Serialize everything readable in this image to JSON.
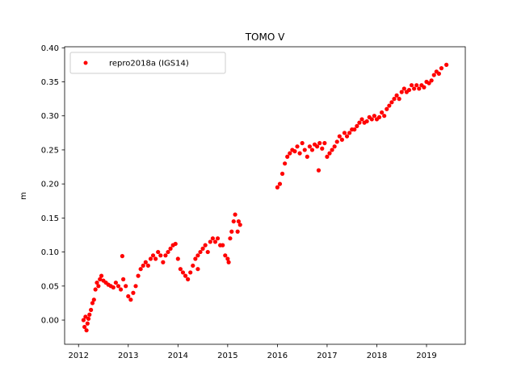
{
  "chart_data": {
    "type": "scatter",
    "title": "TOMO V",
    "xlabel": "",
    "ylabel": "m",
    "xlim": [
      2011.72,
      2019.78
    ],
    "ylim": [
      -0.0355,
      0.4015
    ],
    "xticks": [
      2012,
      2013,
      2014,
      2015,
      2016,
      2017,
      2018,
      2019
    ],
    "xtick_labels": [
      "2012",
      "2013",
      "2014",
      "2015",
      "2016",
      "2017",
      "2018",
      "2019"
    ],
    "yticks": [
      0.0,
      0.05,
      0.1,
      0.15,
      0.2,
      0.25,
      0.3,
      0.35,
      0.4
    ],
    "ytick_labels": [
      "0.00",
      "0.05",
      "0.10",
      "0.15",
      "0.20",
      "0.25",
      "0.30",
      "0.35",
      "0.40"
    ],
    "grid": false,
    "legend_position": "top-left",
    "marker_color": "#ff0000",
    "series": [
      {
        "name": "repro2018a (IGS14)",
        "color": "#ff0000",
        "x": [
          2012.1,
          2012.12,
          2012.14,
          2012.16,
          2012.18,
          2012.2,
          2012.22,
          2012.25,
          2012.28,
          2012.31,
          2012.34,
          2012.37,
          2012.4,
          2012.43,
          2012.46,
          2012.5,
          2012.55,
          2012.6,
          2012.65,
          2012.7,
          2012.75,
          2012.8,
          2012.85,
          2012.9,
          2012.95,
          2013.0,
          2013.05,
          2013.1,
          2013.15,
          2013.2,
          2013.25,
          2013.3,
          2013.35,
          2013.4,
          2013.45,
          2013.5,
          2013.55,
          2013.6,
          2013.65,
          2013.7,
          2013.75,
          2013.8,
          2013.85,
          2013.9,
          2013.95,
          2014.0,
          2014.05,
          2014.1,
          2014.15,
          2014.2,
          2014.25,
          2014.3,
          2014.35,
          2014.4,
          2014.45,
          2014.5,
          2014.55,
          2014.6,
          2014.65,
          2014.7,
          2014.75,
          2014.8,
          2014.85,
          2014.9,
          2014.95,
          2015.0,
          2015.02,
          2015.05,
          2015.08,
          2015.12,
          2015.15,
          2015.22,
          2015.25,
          2016.0,
          2016.05,
          2016.1,
          2016.15,
          2016.2,
          2016.25,
          2016.3,
          2016.35,
          2016.4,
          2016.45,
          2016.5,
          2016.55,
          2016.6,
          2016.65,
          2016.7,
          2016.75,
          2016.8,
          2016.85,
          2016.9,
          2016.95,
          2017.0,
          2017.05,
          2017.1,
          2017.15,
          2017.2,
          2017.25,
          2017.3,
          2017.35,
          2017.4,
          2017.45,
          2017.5,
          2017.55,
          2017.6,
          2017.65,
          2017.7,
          2017.75,
          2017.8,
          2017.85,
          2017.9,
          2017.95,
          2018.0,
          2018.05,
          2018.1,
          2018.15,
          2018.2,
          2018.25,
          2018.3,
          2018.35,
          2018.4,
          2018.45,
          2018.5,
          2018.55,
          2018.6,
          2018.65,
          2018.7,
          2018.75,
          2018.8,
          2018.85,
          2018.9,
          2018.95,
          2019.0,
          2019.05,
          2019.1,
          2019.15,
          2019.2,
          2019.25,
          2019.3,
          2019.4,
          2012.88,
          2016.83,
          2014.4,
          2015.2
        ],
        "y": [
          0.0,
          -0.01,
          0.005,
          -0.015,
          -0.005,
          0.002,
          0.008,
          0.015,
          0.025,
          0.03,
          0.045,
          0.055,
          0.05,
          0.06,
          0.065,
          0.058,
          0.055,
          0.052,
          0.05,
          0.048,
          0.055,
          0.05,
          0.045,
          0.06,
          0.05,
          0.035,
          0.03,
          0.04,
          0.05,
          0.065,
          0.075,
          0.08,
          0.085,
          0.08,
          0.09,
          0.095,
          0.09,
          0.1,
          0.095,
          0.085,
          0.095,
          0.1,
          0.105,
          0.11,
          0.112,
          0.09,
          0.075,
          0.07,
          0.065,
          0.06,
          0.07,
          0.08,
          0.09,
          0.095,
          0.1,
          0.105,
          0.11,
          0.1,
          0.115,
          0.12,
          0.115,
          0.12,
          0.11,
          0.11,
          0.095,
          0.09,
          0.085,
          0.12,
          0.13,
          0.145,
          0.155,
          0.145,
          0.14,
          0.195,
          0.2,
          0.215,
          0.23,
          0.24,
          0.245,
          0.25,
          0.248,
          0.255,
          0.245,
          0.26,
          0.25,
          0.24,
          0.255,
          0.25,
          0.258,
          0.255,
          0.26,
          0.252,
          0.26,
          0.24,
          0.245,
          0.25,
          0.255,
          0.262,
          0.27,
          0.265,
          0.275,
          0.27,
          0.275,
          0.28,
          0.28,
          0.285,
          0.29,
          0.295,
          0.29,
          0.292,
          0.298,
          0.295,
          0.3,
          0.295,
          0.298,
          0.305,
          0.3,
          0.31,
          0.315,
          0.32,
          0.325,
          0.33,
          0.325,
          0.335,
          0.34,
          0.335,
          0.338,
          0.345,
          0.34,
          0.345,
          0.34,
          0.345,
          0.342,
          0.35,
          0.348,
          0.352,
          0.36,
          0.365,
          0.362,
          0.37,
          0.375,
          0.094,
          0.22,
          0.075,
          0.13
        ]
      }
    ],
    "legend": [
      {
        "label": "repro2018a (IGS14)",
        "marker": "dot",
        "color": "#ff0000"
      }
    ]
  }
}
